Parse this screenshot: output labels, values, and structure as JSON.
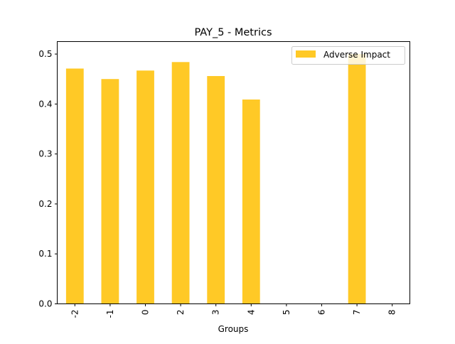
{
  "chart_data": {
    "type": "bar",
    "title": "PAY_5 - Metrics",
    "xlabel": "Groups",
    "ylabel": "",
    "categories": [
      "-2",
      "-1",
      "0",
      "2",
      "3",
      "4",
      "5",
      "6",
      "7",
      "8"
    ],
    "series": [
      {
        "name": "Adverse Impact",
        "values": [
          0.471,
          0.45,
          0.467,
          0.484,
          0.456,
          0.409,
          null,
          null,
          0.5,
          null
        ],
        "color": "#ffc926"
      }
    ],
    "ylim": [
      0,
      0.525
    ],
    "yticks": [
      "0.0",
      "0.1",
      "0.2",
      "0.3",
      "0.4",
      "0.5"
    ],
    "grid": false,
    "legend": "top-right"
  }
}
